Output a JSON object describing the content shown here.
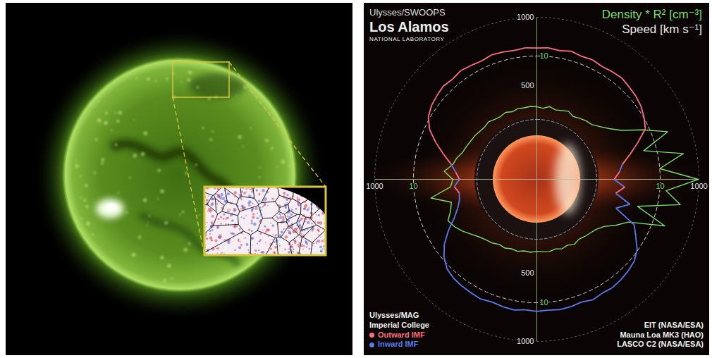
{
  "chart_data": {
    "type": "polar",
    "title": "Ulysses/SWOOPS",
    "institution": [
      "Los Alamos",
      "NATIONAL LABORATORY"
    ],
    "credits": [
      "EIT (NASA/ESA)",
      "Mauna Loa MK3 (HAO)",
      "LASCO C2 (NASA/ESA)"
    ],
    "legend": "bottom-left",
    "imf": {
      "title": [
        "Ulysses/MAG",
        "Imperial College"
      ],
      "classes": [
        {
          "name": "Outward IMF",
          "color": "#ff6f80"
        },
        {
          "name": "Inward IMF",
          "color": "#5b7bea"
        }
      ]
    },
    "angle": [
      0,
      5,
      10,
      15,
      20,
      25,
      30,
      35,
      40,
      45,
      50,
      55,
      60,
      65,
      70,
      75,
      80,
      85,
      90,
      95,
      100,
      105,
      110,
      115,
      120,
      125,
      130,
      135,
      140,
      145,
      150,
      155,
      160,
      165,
      170,
      175,
      180,
      185,
      190,
      195,
      200,
      205,
      210,
      215,
      220,
      225,
      230,
      235,
      240,
      245,
      250,
      255,
      260,
      265,
      270,
      275,
      280,
      285,
      290,
      295,
      300,
      305,
      310,
      315,
      320,
      325,
      330,
      335,
      340,
      345,
      350,
      355
    ],
    "rlim": [
      0,
      1000
    ],
    "rticks": [
      500,
      1000
    ],
    "density_lim": [
      0,
      16.1
    ],
    "density_ticks": [
      10
    ],
    "series": [
      {
        "name": "Density * R² [cm⁻³]",
        "color": "#7ddc6a",
        "values": [
          2.0,
          1.8,
          2.2,
          1.9,
          2.1,
          2.4,
          2.0,
          2.3,
          2.6,
          2.8,
          3.5,
          4.5,
          6.0,
          9.0,
          12.5,
          8.0,
          14.0,
          10.0,
          16.0,
          11.0,
          13.5,
          7.0,
          12.0,
          6.5,
          5.0,
          3.5,
          2.8,
          2.5,
          2.3,
          2.1,
          2.4,
          2.0,
          2.2,
          1.9,
          2.1,
          2.0,
          1.9,
          2.1,
          2.0,
          2.3,
          2.2,
          2.5,
          2.4,
          2.8,
          3.0,
          3.4,
          4.0,
          4.8,
          5.5,
          6.0,
          5.0,
          4.5,
          7.5,
          4.2,
          3.8,
          5.2,
          4.0,
          3.6,
          3.0,
          2.8,
          2.6,
          2.5,
          2.3,
          2.2,
          2.4,
          2.1,
          2.0,
          2.2,
          1.9,
          2.1,
          2.0,
          2.1
        ]
      },
      {
        "name": "Speed [km s⁻¹]",
        "color": "#e8e8e8",
        "values": [
          775,
          780,
          770,
          785,
          772,
          779,
          768,
          776,
          782,
          770,
          760,
          745,
          720,
          690,
          600,
          520,
          450,
          420,
          380,
          460,
          400,
          520,
          430,
          600,
          650,
          710,
          745,
          760,
          772,
          780,
          775,
          786,
          770,
          778,
          782,
          775,
          780,
          772,
          785,
          778,
          770,
          781,
          774,
          768,
          760,
          742,
          700,
          640,
          560,
          480,
          430,
          400,
          390,
          420,
          380,
          410,
          450,
          520,
          600,
          680,
          730,
          755,
          768,
          780,
          772,
          785,
          776,
          770,
          783,
          778,
          772,
          780
        ],
        "polarity": [
          "Outward IMF",
          "Outward IMF",
          "Outward IMF",
          "Outward IMF",
          "Outward IMF",
          "Outward IMF",
          "Outward IMF",
          "Outward IMF",
          "Outward IMF",
          "Outward IMF",
          "Outward IMF",
          "Outward IMF",
          "Outward IMF",
          "Outward IMF",
          "Outward IMF",
          "Outward IMF",
          "Inward IMF",
          "Outward IMF",
          "Inward IMF",
          "Outward IMF",
          "Inward IMF",
          "Inward IMF",
          "Inward IMF",
          "Inward IMF",
          "Inward IMF",
          "Inward IMF",
          "Inward IMF",
          "Inward IMF",
          "Inward IMF",
          "Inward IMF",
          "Inward IMF",
          "Inward IMF",
          "Inward IMF",
          "Inward IMF",
          "Inward IMF",
          "Inward IMF",
          "Inward IMF",
          "Inward IMF",
          "Inward IMF",
          "Inward IMF",
          "Inward IMF",
          "Inward IMF",
          "Inward IMF",
          "Inward IMF",
          "Inward IMF",
          "Inward IMF",
          "Inward IMF",
          "Inward IMF",
          "Inward IMF",
          "Inward IMF",
          "Inward IMF",
          "Inward IMF",
          "Outward IMF",
          "Inward IMF",
          "Outward IMF",
          "Inward IMF",
          "Outward IMF",
          "Outward IMF",
          "Outward IMF",
          "Outward IMF",
          "Outward IMF",
          "Outward IMF",
          "Outward IMF",
          "Outward IMF",
          "Outward IMF",
          "Outward IMF",
          "Outward IMF",
          "Outward IMF",
          "Outward IMF",
          "Outward IMF",
          "Outward IMF",
          "Outward IMF"
        ]
      }
    ]
  }
}
